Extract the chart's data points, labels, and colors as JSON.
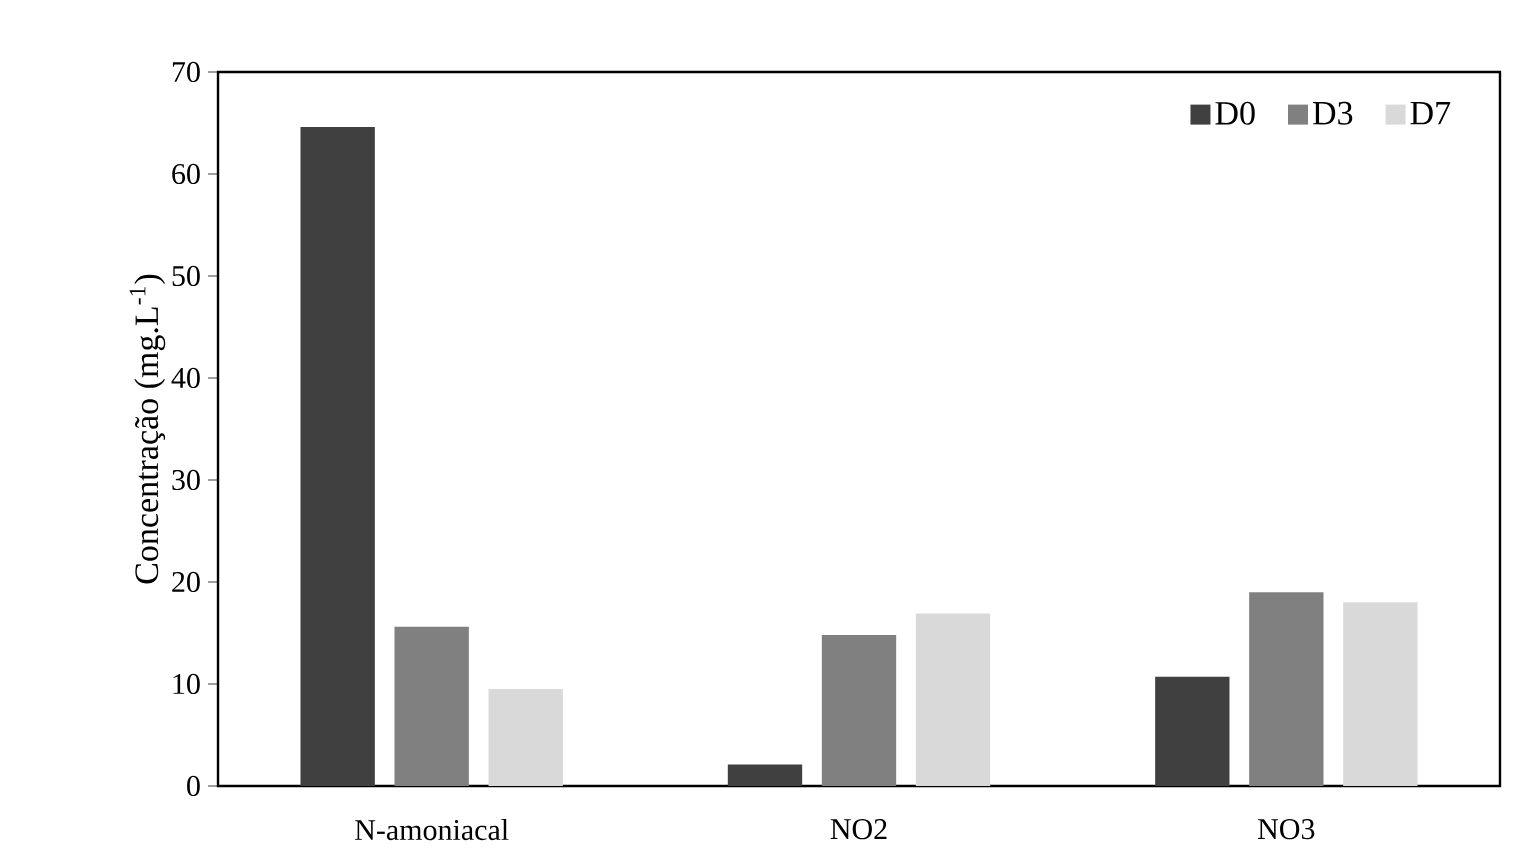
{
  "chart_data": {
    "type": "bar",
    "ylabel": "Concentração (mg.L$^{-1}$)",
    "categories": [
      "N-amoniacal",
      "NO2",
      "NO3"
    ],
    "series": [
      {
        "name": "D0",
        "color": "#404040",
        "values": [
          64.6,
          2.1,
          10.7
        ]
      },
      {
        "name": "D3",
        "color": "#808080",
        "values": [
          15.6,
          14.8,
          19.0
        ]
      },
      {
        "name": "D7",
        "color": "#d9d9d9",
        "values": [
          9.5,
          16.9,
          18.0
        ]
      }
    ],
    "ylim": [
      0,
      70
    ],
    "yticks": [
      0,
      10,
      20,
      30,
      40,
      50,
      60,
      70
    ],
    "legend": "top right",
    "grid": false
  }
}
